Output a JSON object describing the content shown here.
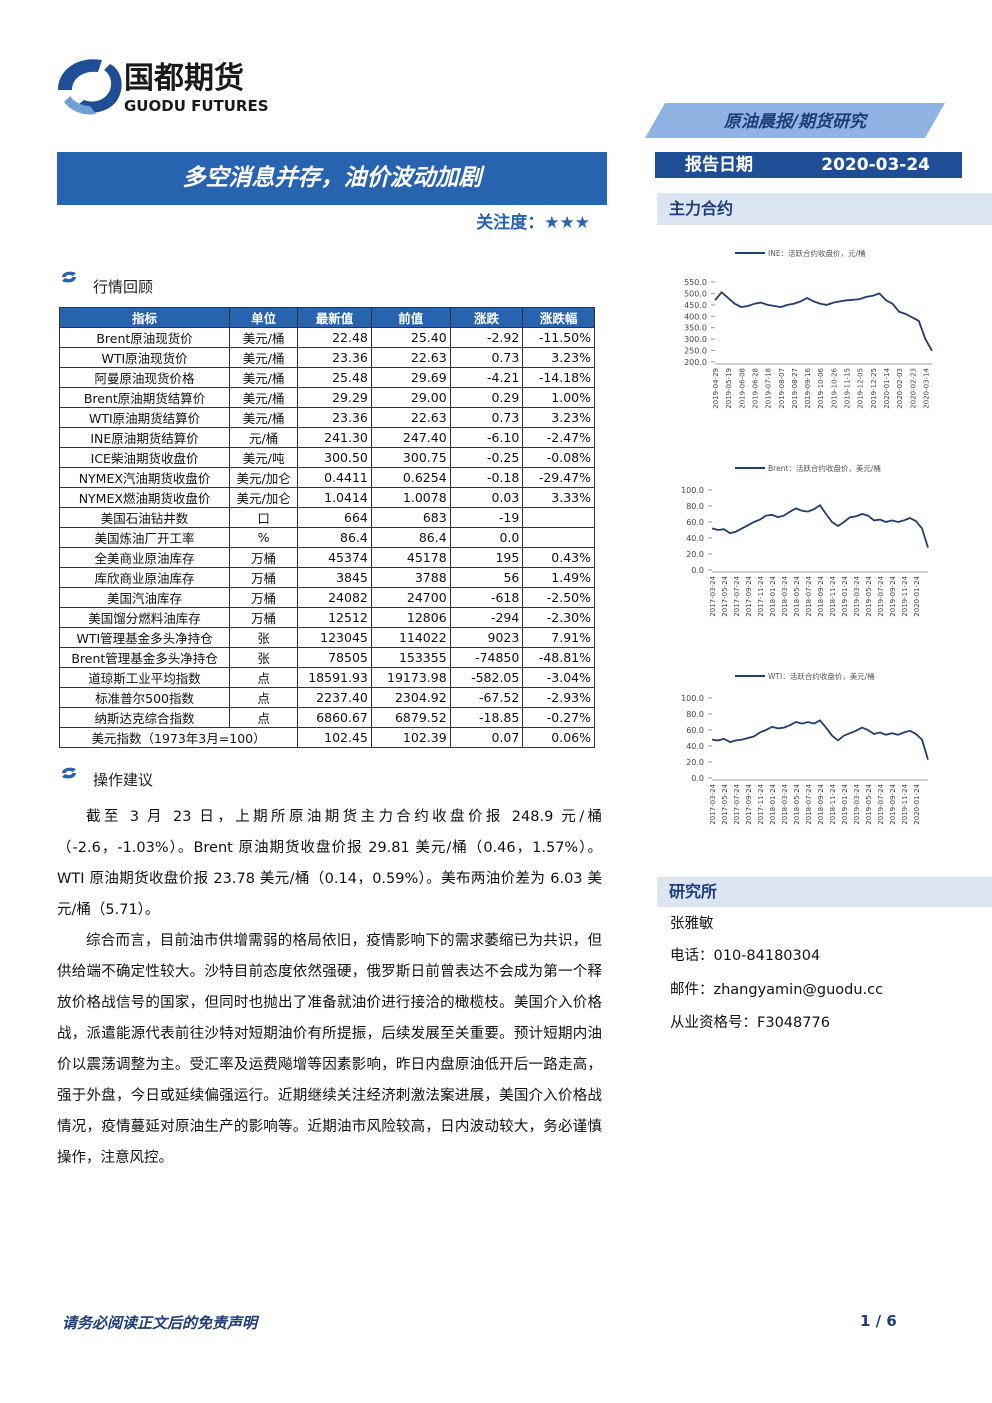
{
  "header": {
    "logo_cn": "国都期货",
    "logo_en": "GUODU FUTURES",
    "report_type": "原油晨报/期货研究",
    "date_label": "报告日期",
    "date": "2020-03-24"
  },
  "title": "多空消息并存，油价波动加剧",
  "attention": "关注度：★★★",
  "market_review": {
    "heading": "行情回顾",
    "table": {
      "columns": [
        "指标",
        "单位",
        "最新值",
        "前值",
        "涨跌",
        "涨跌幅"
      ],
      "groups": [
        [
          [
            "Brent原油现货价",
            "美元/桶",
            "22.48",
            "25.40",
            "-2.92",
            "-11.50%"
          ],
          [
            "WTI原油现货价",
            "美元/桶",
            "23.36",
            "22.63",
            "0.73",
            "3.23%"
          ],
          [
            "阿曼原油现货价格",
            "美元/桶",
            "25.48",
            "29.69",
            "-4.21",
            "-14.18%"
          ]
        ],
        [
          [
            "Brent原油期货结算价",
            "美元/桶",
            "29.29",
            "29.00",
            "0.29",
            "1.00%"
          ],
          [
            "WTI原油期货结算价",
            "美元/桶",
            "23.36",
            "22.63",
            "0.73",
            "3.23%"
          ],
          [
            "INE原油期货结算价",
            "元/桶",
            "241.30",
            "247.40",
            "-6.10",
            "-2.47%"
          ]
        ],
        [
          [
            "ICE柴油期货收盘价",
            "美元/吨",
            "300.50",
            "300.75",
            "-0.25",
            "-0.08%"
          ],
          [
            "NYMEX汽油期货收盘价",
            "美元/加仑",
            "0.4411",
            "0.6254",
            "-0.18",
            "-29.47%"
          ],
          [
            "NYMEX燃油期货收盘价",
            "美元/加仑",
            "1.0414",
            "1.0078",
            "0.03",
            "3.33%"
          ]
        ],
        [
          [
            "美国石油钻井数",
            "口",
            "664",
            "683",
            "-19"
          ],
          [
            "美国炼油厂开工率",
            "%",
            "86.4",
            "86.4",
            "0.0"
          ]
        ],
        [
          [
            "全美商业原油库存",
            "万桶",
            "45374",
            "45178",
            "195",
            "0.43%"
          ],
          [
            "库欣商业原油库存",
            "万桶",
            "3845",
            "3788",
            "56",
            "1.49%"
          ],
          [
            "美国汽油库存",
            "万桶",
            "24082",
            "24700",
            "-618",
            "-2.50%"
          ],
          [
            "美国馏分燃料油库存",
            "万桶",
            "12512",
            "12806",
            "-294",
            "-2.30%"
          ]
        ],
        [
          [
            "WTI管理基金多头净持仓",
            "张",
            "123045",
            "114022",
            "9023",
            "7.91%"
          ],
          [
            "Brent管理基金多头净持仓",
            "张",
            "78505",
            "153355",
            "-74850",
            "-48.81%"
          ]
        ],
        [
          [
            "道琼斯工业平均指数",
            "点",
            "18591.93",
            "19173.98",
            "-582.05",
            "-3.04%"
          ],
          [
            "标准普尔500指数",
            "点",
            "2237.40",
            "2304.92",
            "-67.52",
            "-2.93%"
          ],
          [
            "纳斯达克综合指数",
            "点",
            "6860.67",
            "6879.52",
            "-18.85",
            "-0.27%"
          ]
        ]
      ],
      "footer_row": [
        "美元指数（1973年3月=100）",
        "102.45",
        "102.39",
        "0.07",
        "0.06%"
      ]
    }
  },
  "advice": {
    "heading": "操作建议",
    "paragraphs": [
      "截至 3 月 23 日，上期所原油期货主力合约收盘价报 248.9 元/桶（-2.6，-1.03%）。Brent 原油期货收盘价报 29.81 美元/桶（0.46，1.57%）。WTI 原油期货收盘价报 23.78 美元/桶（0.14，0.59%）。美布两油价差为 6.03 美元/桶（5.71）。",
      "综合而言，目前油市供增需弱的格局依旧，疫情影响下的需求萎缩已为共识，但供给端不确定性较大。沙特目前态度依然强硬，俄罗斯日前曾表达不会成为第一个释放价格战信号的国家，但同时也抛出了准备就油价进行接洽的橄榄枝。美国介入价格战，派遣能源代表前往沙特对短期油价有所提振，后续发展至关重要。预计短期内油价以震荡调整为主。受汇率及运费飚增等因素影响，昨日内盘原油低开后一路走高，强于外盘，今日或延续偏强运行。近期继续关注经济刺激法案进展，美国介入价格战情况，疫情蔓延对原油生产的影响等。近期油市风险较高，日内波动较大，务必谨慎操作，注意风控。"
    ]
  },
  "sidebar": {
    "contracts_heading": "主力合约",
    "research": {
      "heading": "研究所",
      "name": "张雅敏",
      "phone": "电话：010-84180304",
      "email": "邮件：zhangyamin@guodu.cc",
      "license": "从业资格号：F3048776"
    }
  },
  "chart_data": [
    {
      "type": "line",
      "categories": [
        "2019-04-29",
        null,
        "2019-05-19",
        null,
        "2019-06-08",
        null,
        "2019-06-28",
        null,
        "2019-07-18",
        null,
        "2019-08-07",
        null,
        "2019-08-27",
        null,
        "2019-09-16",
        null,
        "2019-10-06",
        null,
        "2019-10-26",
        null,
        "2019-11-15",
        null,
        "2019-12-05",
        null,
        "2019-12-25",
        null,
        "2020-01-14",
        null,
        "2020-02-03",
        null,
        "2020-02-23",
        null,
        "2020-03-14",
        null
      ],
      "series": [
        {
          "name": "INE：活跃合约收盘价，元/桶",
          "color": "#1f3d6e",
          "values": [
            470,
            505,
            480,
            455,
            440,
            445,
            455,
            460,
            450,
            445,
            440,
            450,
            455,
            465,
            480,
            465,
            455,
            450,
            460,
            465,
            470,
            472,
            475,
            485,
            490,
            500,
            470,
            455,
            420,
            410,
            395,
            380,
            300,
            249
          ]
        }
      ],
      "ylim": [
        200,
        550
      ],
      "yticks": [
        {
          "value": 200,
          "label": "200.0"
        },
        {
          "value": 250,
          "label": "250.0"
        },
        {
          "value": 300,
          "label": "300.0"
        },
        {
          "value": 350,
          "label": "350.0"
        },
        {
          "value": 400,
          "label": "400.0"
        },
        {
          "value": 450,
          "label": "450.0"
        },
        {
          "value": 500,
          "label": "500.0"
        },
        {
          "value": 550,
          "label": "550.0"
        }
      ]
    },
    {
      "type": "line",
      "categories": [
        "2017-03-24",
        null,
        "2017-05-24",
        null,
        "2017-07-24",
        null,
        "2017-09-24",
        null,
        "2017-11-24",
        null,
        "2018-01-24",
        null,
        "2018-03-24",
        null,
        "2018-05-24",
        null,
        "2018-07-24",
        null,
        "2018-09-24",
        null,
        "2018-11-24",
        null,
        "2019-01-24",
        null,
        "2019-03-24",
        null,
        "2019-05-24",
        null,
        "2019-07-24",
        null,
        "2019-09-24",
        null,
        "2019-11-24",
        null,
        "2020-01-24",
        null,
        null
      ],
      "series": [
        {
          "name": "Brent：活跃合约收盘价，美元/桶",
          "color": "#1f3d6e",
          "values": [
            52,
            50,
            51,
            46,
            48,
            52,
            56,
            60,
            63,
            68,
            69,
            66,
            68,
            73,
            77,
            74,
            73,
            76,
            81,
            70,
            60,
            55,
            60,
            66,
            67,
            70,
            68,
            62,
            63,
            60,
            62,
            60,
            62,
            65,
            61,
            52,
            28
          ]
        }
      ],
      "ylim": [
        0,
        100
      ],
      "yticks": [
        {
          "value": 0,
          "label": "0.0"
        },
        {
          "value": 20,
          "label": "20.0"
        },
        {
          "value": 40,
          "label": "40.0"
        },
        {
          "value": 60,
          "label": "60.0"
        },
        {
          "value": 80,
          "label": "80.0"
        },
        {
          "value": 100,
          "label": "100.0"
        }
      ]
    },
    {
      "type": "line",
      "categories": [
        "2017-03-24",
        null,
        "2017-05-24",
        null,
        "2017-07-24",
        null,
        "2017-09-24",
        null,
        "2017-11-24",
        null,
        "2018-01-24",
        null,
        "2018-03-24",
        null,
        "2018-05-24",
        null,
        "2018-07-24",
        null,
        "2018-09-24",
        null,
        "2018-11-24",
        null,
        "2019-01-24",
        null,
        "2019-03-24",
        null,
        "2019-05-24",
        null,
        "2019-07-24",
        null,
        "2019-09-24",
        null,
        "2019-11-24",
        null,
        "2020-01-24",
        null,
        null
      ],
      "series": [
        {
          "name": "WTI：活跃合约收盘价，美元/桶",
          "color": "#1f3d6e",
          "values": [
            48,
            47,
            49,
            45,
            47,
            48,
            50,
            52,
            57,
            60,
            64,
            62,
            63,
            66,
            70,
            68,
            70,
            68,
            72,
            63,
            53,
            47,
            53,
            56,
            59,
            63,
            60,
            55,
            57,
            54,
            56,
            54,
            57,
            59,
            55,
            48,
            23
          ]
        }
      ],
      "ylim": [
        0,
        100
      ],
      "yticks": [
        {
          "value": 0,
          "label": "0.0"
        },
        {
          "value": 20,
          "label": "20.0"
        },
        {
          "value": 40,
          "label": "40.0"
        },
        {
          "value": 60,
          "label": "60.0"
        },
        {
          "value": 80,
          "label": "80.0"
        },
        {
          "value": 100,
          "label": "100.0"
        }
      ]
    }
  ],
  "footer": {
    "disclaimer": "请务必阅读正文后的免责声明",
    "page": "1 / 6"
  }
}
